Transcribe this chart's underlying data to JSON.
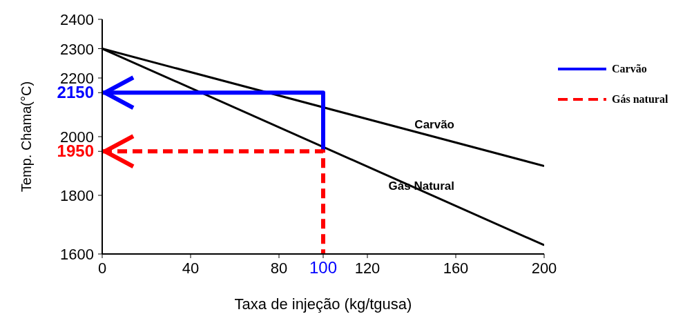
{
  "chart_data": {
    "type": "line",
    "xlabel": "Taxa de injeção (kg/tgusa)",
    "ylabel": "Temp. Chama(°C)",
    "xlim": [
      0,
      200
    ],
    "xticks": [
      0,
      40,
      80,
      100,
      120,
      160,
      200
    ],
    "ylim": [
      1600,
      2400
    ],
    "yticks": [
      1600,
      1800,
      1950,
      2000,
      2150,
      2200,
      2300,
      2400
    ],
    "grid": false,
    "legend": "top right",
    "marker": "none",
    "series": [
      {
        "name": "Carvão",
        "color": "#000000",
        "x": [
          0,
          200
        ],
        "values": [
          2300,
          1900
        ],
        "line_style": "solid"
      },
      {
        "name": "Gás Natural",
        "color": "#000000",
        "x": [
          0,
          200
        ],
        "values": [
          2300,
          1630
        ],
        "line_style": "solid"
      },
      {
        "name": "Carvão",
        "color": "#0000ff",
        "x": [
          0,
          100,
          100
        ],
        "values": [
          2150,
          2150,
          1950
        ],
        "line_style": "solid"
      },
      {
        "name": "Gás natural",
        "color": "#ff0000",
        "x": [
          0,
          100,
          100
        ],
        "values": [
          1950,
          1950,
          1600
        ],
        "line_style": "dashed"
      }
    ]
  }
}
